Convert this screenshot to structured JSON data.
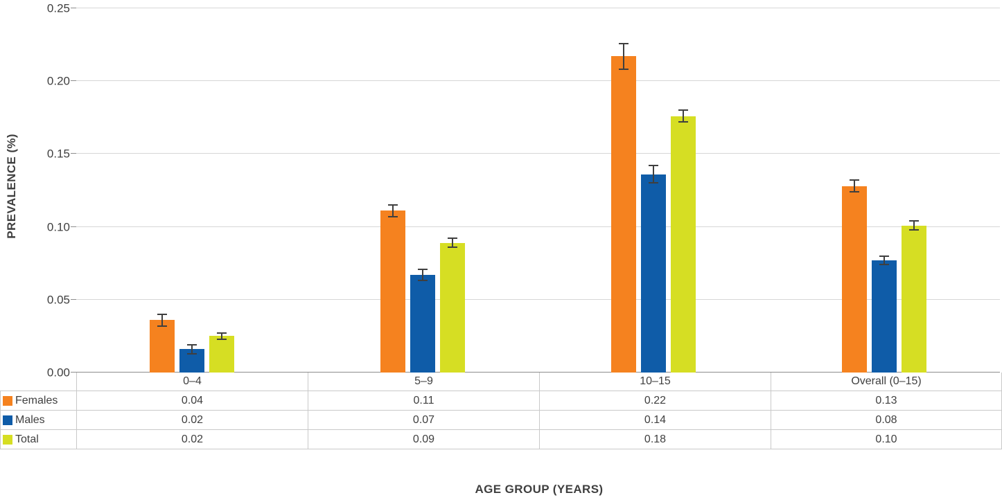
{
  "chart_data": {
    "type": "bar",
    "title": "",
    "xlabel": "AGE GROUP (YEARS)",
    "ylabel": "PREVALENCE (%)",
    "ylim": [
      0,
      0.25
    ],
    "grid": true,
    "legend_position": "table-left",
    "yticks": [
      0.25,
      0.2,
      0.15,
      0.1,
      0.05,
      0.0
    ],
    "ytick_labels": [
      "0.25",
      "0.20",
      "0.15",
      "0.10",
      "0.05",
      "0.00"
    ],
    "categories": [
      "0–4",
      "5–9",
      "10–15",
      "Overall (0–15)"
    ],
    "series": [
      {
        "name": "Females",
        "color": "#F5821F",
        "values": [
          0.036,
          0.111,
          0.217,
          0.128
        ],
        "errors": [
          0.004,
          0.004,
          0.009,
          0.004
        ],
        "table_values": [
          "0.04",
          "0.11",
          "0.22",
          "0.13"
        ]
      },
      {
        "name": "Males",
        "color": "#0F5CA8",
        "values": [
          0.016,
          0.067,
          0.136,
          0.077
        ],
        "errors": [
          0.003,
          0.004,
          0.006,
          0.003
        ],
        "table_values": [
          "0.02",
          "0.07",
          "0.14",
          "0.08"
        ]
      },
      {
        "name": "Total",
        "color": "#D6DE23",
        "values": [
          0.025,
          0.089,
          0.176,
          0.101
        ],
        "errors": [
          0.002,
          0.003,
          0.004,
          0.003
        ],
        "table_values": [
          "0.02",
          "0.09",
          "0.18",
          "0.10"
        ]
      }
    ],
    "colors": {
      "grid": "#D6D6D6",
      "axis": "#8C8C8C",
      "error_bar": "#3F3F3F",
      "table_border": "#C9C9C9",
      "text": "#3F3F3F",
      "background": "#FFFFFF"
    }
  }
}
